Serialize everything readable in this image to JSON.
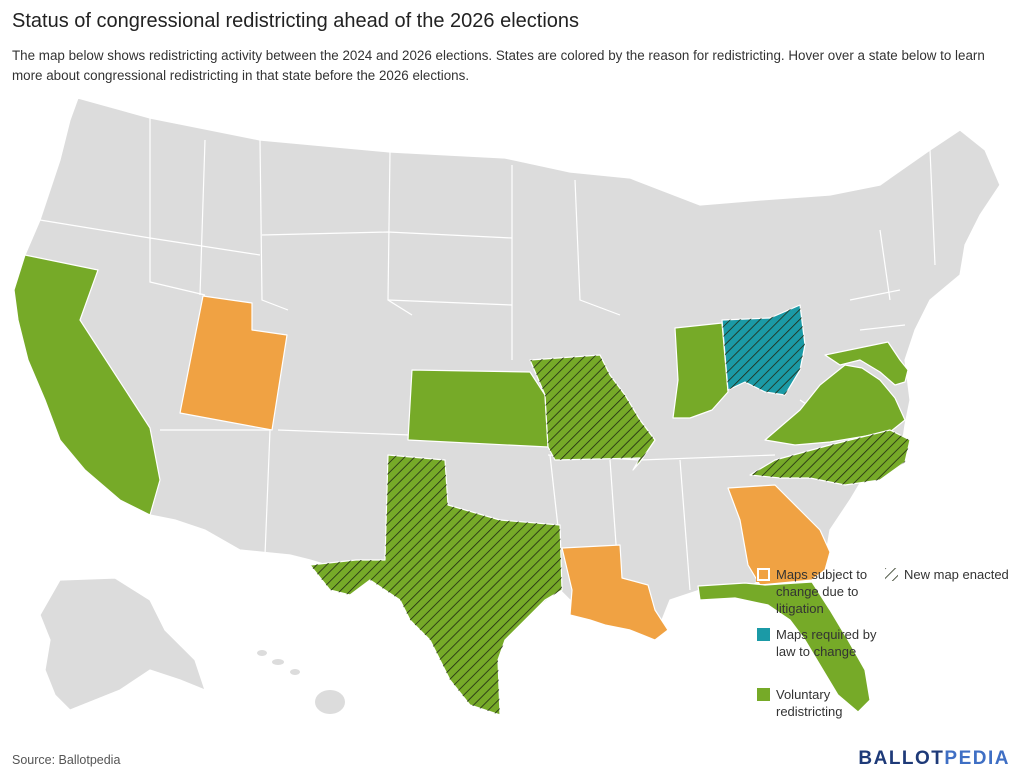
{
  "header": {
    "title": "Status of congressional redistricting ahead of the 2026 elections",
    "subtitle": "The map below shows redistricting activity between the 2024 and 2026 elections. States are colored by the reason for redistricting. Hover over a state below to learn more about congressional redistricting in that state before the 2026 elections."
  },
  "colors": {
    "default_state": "#dcdcdc",
    "litigation": "#f0a243",
    "required_by_law": "#1b9aa6",
    "voluntary": "#76aa28",
    "hatch": "#1f2a12"
  },
  "legend": {
    "litigation_label": "Maps subject to change due to litigation",
    "required_label": "Maps required by law to change",
    "voluntary_label": "Voluntary redistricting",
    "new_map_label": "New map enacted"
  },
  "states": [
    {
      "name": "California",
      "category": "voluntary",
      "new_map": false
    },
    {
      "name": "Utah",
      "category": "litigation",
      "new_map": false
    },
    {
      "name": "Kansas",
      "category": "voluntary",
      "new_map": false
    },
    {
      "name": "Missouri",
      "category": "voluntary",
      "new_map": true
    },
    {
      "name": "Texas",
      "category": "voluntary",
      "new_map": true
    },
    {
      "name": "Louisiana",
      "category": "litigation",
      "new_map": false
    },
    {
      "name": "Indiana",
      "category": "voluntary",
      "new_map": false
    },
    {
      "name": "Ohio",
      "category": "required_by_law",
      "new_map": true
    },
    {
      "name": "Virginia",
      "category": "voluntary",
      "new_map": false
    },
    {
      "name": "Maryland",
      "category": "voluntary",
      "new_map": false
    },
    {
      "name": "North Carolina",
      "category": "voluntary",
      "new_map": true
    },
    {
      "name": "Georgia",
      "category": "litigation",
      "new_map": false
    },
    {
      "name": "Florida",
      "category": "voluntary",
      "new_map": false
    }
  ],
  "footer": {
    "source": "Source: Ballotpedia",
    "brand_part1": "BALLOT",
    "brand_part2": "PEDIA"
  }
}
